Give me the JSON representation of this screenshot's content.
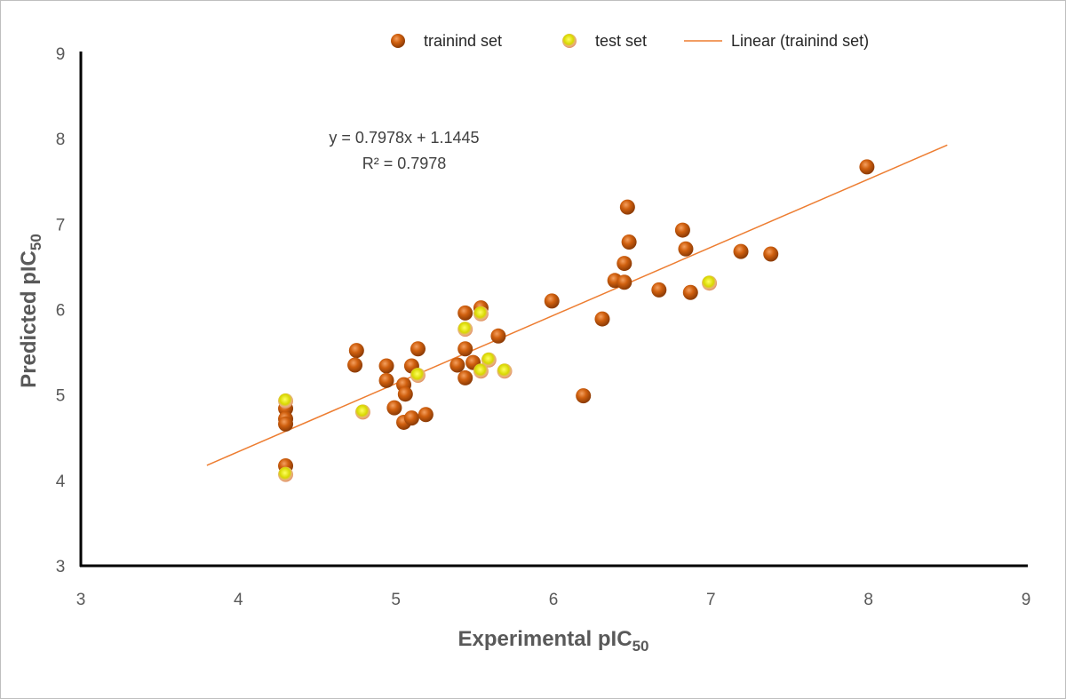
{
  "chart_data": {
    "type": "scatter",
    "title": "",
    "xlabel": "Experimental pIC",
    "xlabel_sub": "50",
    "ylabel": "Predicted pIC",
    "ylabel_sub": "50",
    "xlim": [
      3,
      9
    ],
    "ylim": [
      3,
      9
    ],
    "xticks": [
      "3",
      "4",
      "5",
      "6",
      "7",
      "8",
      "9"
    ],
    "yticks": [
      "3",
      "4",
      "5",
      "6",
      "7",
      "8",
      "9"
    ],
    "grid": false,
    "legend_position": "top",
    "series": [
      {
        "name": "trainind set",
        "color": "#c55a11",
        "points": [
          [
            4.3,
            4.84
          ],
          [
            4.3,
            4.72
          ],
          [
            4.3,
            4.66
          ],
          [
            4.3,
            4.17
          ],
          [
            4.75,
            5.52
          ],
          [
            4.74,
            5.35
          ],
          [
            4.94,
            5.34
          ],
          [
            4.94,
            5.17
          ],
          [
            4.99,
            4.85
          ],
          [
            5.05,
            5.12
          ],
          [
            5.06,
            5.01
          ],
          [
            5.05,
            4.68
          ],
          [
            5.1,
            4.73
          ],
          [
            5.1,
            5.34
          ],
          [
            5.14,
            5.54
          ],
          [
            5.19,
            4.77
          ],
          [
            5.44,
            5.96
          ],
          [
            5.44,
            5.54
          ],
          [
            5.44,
            5.2
          ],
          [
            5.39,
            5.35
          ],
          [
            5.49,
            5.38
          ],
          [
            5.54,
            6.02
          ],
          [
            5.65,
            5.69
          ],
          [
            5.99,
            6.1
          ],
          [
            6.31,
            5.89
          ],
          [
            6.19,
            4.99
          ],
          [
            6.47,
            7.2
          ],
          [
            6.48,
            6.79
          ],
          [
            6.45,
            6.54
          ],
          [
            6.39,
            6.34
          ],
          [
            6.45,
            6.32
          ],
          [
            6.67,
            6.23
          ],
          [
            6.82,
            6.93
          ],
          [
            6.84,
            6.71
          ],
          [
            6.87,
            6.2
          ],
          [
            7.19,
            6.68
          ],
          [
            7.38,
            6.65
          ],
          [
            7.99,
            7.67
          ]
        ]
      },
      {
        "name": "test set",
        "color": "#e6e600",
        "points": [
          [
            4.3,
            4.93
          ],
          [
            4.3,
            4.07
          ],
          [
            4.79,
            4.8
          ],
          [
            5.14,
            5.23
          ],
          [
            5.44,
            5.77
          ],
          [
            5.54,
            5.95
          ],
          [
            5.59,
            5.41
          ],
          [
            5.54,
            5.28
          ],
          [
            5.69,
            5.28
          ],
          [
            6.99,
            6.31
          ]
        ]
      }
    ],
    "trendline": {
      "name": "Linear (trainind set)",
      "color": "#ed7d31",
      "slope": 0.7978,
      "intercept": 1.1445,
      "x_range": [
        3.8,
        8.5
      ],
      "equation": "y = 0.7978x + 1.1445",
      "r2_label": "R² = 0.7978"
    }
  }
}
